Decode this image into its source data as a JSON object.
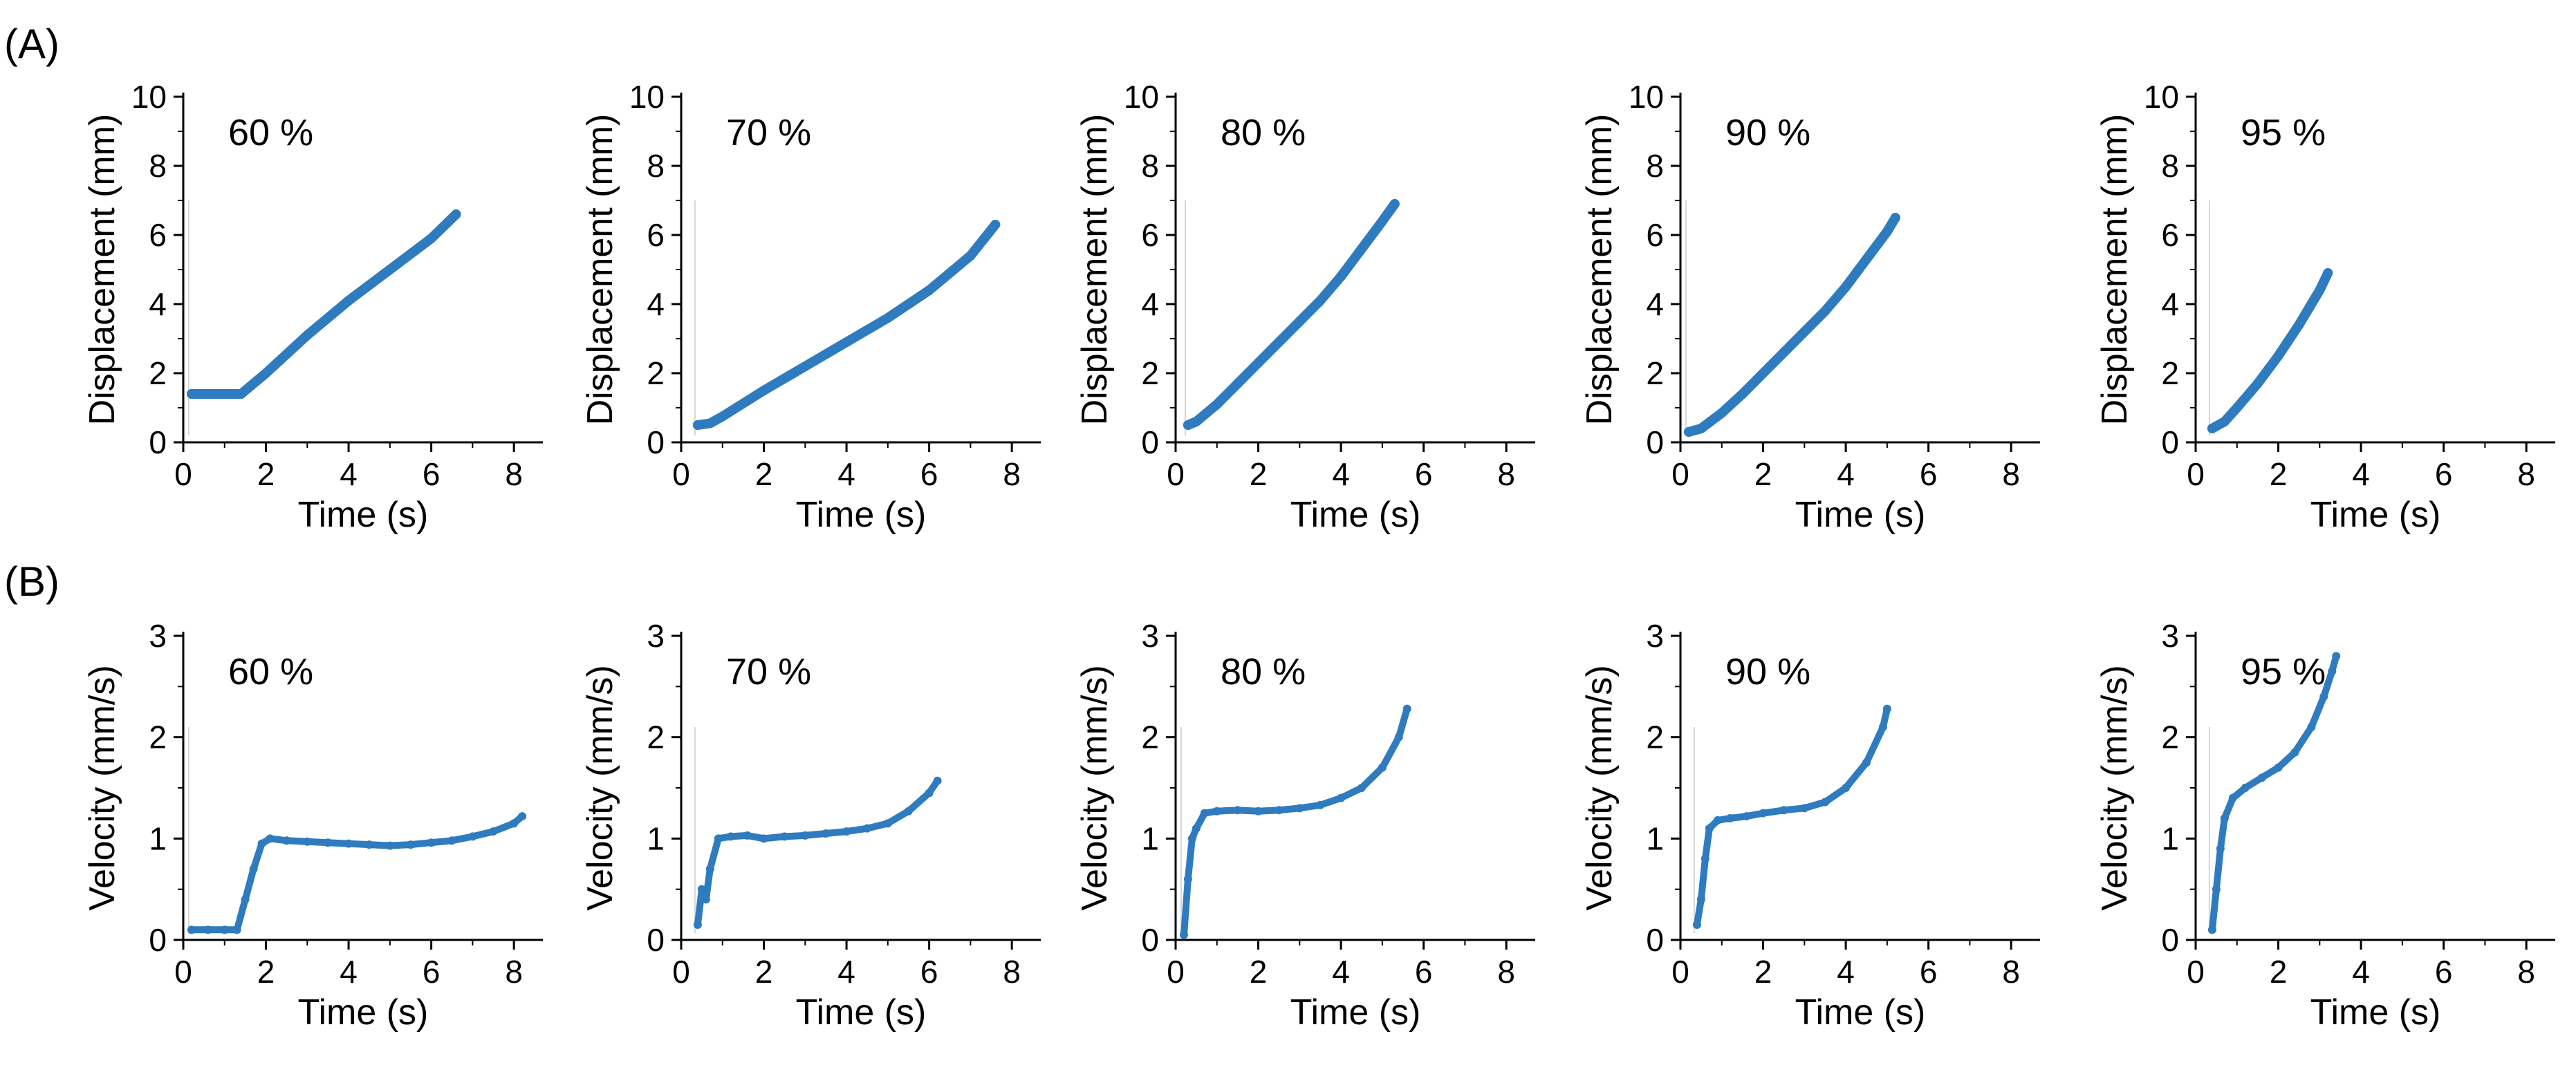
{
  "figure": {
    "panel_labels": [
      "(A)",
      "(B)"
    ]
  },
  "colors": {
    "series": "#2f7bbf",
    "axis": "#000000"
  },
  "chart_data": [
    {
      "type": "scatter",
      "panel": "A",
      "title": "60 %",
      "xlabel": "Time (s)",
      "ylabel": "Displacement (mm)",
      "xlim": [
        0,
        8.7
      ],
      "ylim": [
        0,
        10
      ],
      "xticks": [
        0,
        2,
        4,
        6,
        8
      ],
      "yticks": [
        0,
        2,
        4,
        6,
        8,
        10
      ],
      "x": [
        0.2,
        0.5,
        1.0,
        1.4,
        2.0,
        3.0,
        4.0,
        5.0,
        6.0,
        6.6
      ],
      "y": [
        1.4,
        1.4,
        1.4,
        1.4,
        2.0,
        3.1,
        4.1,
        5.0,
        5.9,
        6.6
      ]
    },
    {
      "type": "scatter",
      "panel": "A",
      "title": "70 %",
      "xlabel": "Time (s)",
      "ylabel": "Displacement (mm)",
      "xlim": [
        0,
        8.7
      ],
      "ylim": [
        0,
        10
      ],
      "xticks": [
        0,
        2,
        4,
        6,
        8
      ],
      "yticks": [
        0,
        2,
        4,
        6,
        8,
        10
      ],
      "x": [
        0.4,
        0.7,
        1.0,
        2.0,
        3.0,
        4.0,
        5.0,
        6.0,
        7.0,
        7.6
      ],
      "y": [
        0.5,
        0.55,
        0.75,
        1.5,
        2.2,
        2.9,
        3.6,
        4.4,
        5.4,
        6.3
      ]
    },
    {
      "type": "scatter",
      "panel": "A",
      "title": "80 %",
      "xlabel": "Time (s)",
      "ylabel": "Displacement (mm)",
      "xlim": [
        0,
        8.7
      ],
      "ylim": [
        0,
        10
      ],
      "xticks": [
        0,
        2,
        4,
        6,
        8
      ],
      "yticks": [
        0,
        2,
        4,
        6,
        8,
        10
      ],
      "x": [
        0.3,
        0.5,
        1.0,
        1.5,
        2.0,
        2.5,
        3.0,
        3.5,
        4.0,
        4.5,
        5.0,
        5.3
      ],
      "y": [
        0.5,
        0.6,
        1.1,
        1.7,
        2.3,
        2.9,
        3.5,
        4.1,
        4.8,
        5.6,
        6.4,
        6.9
      ]
    },
    {
      "type": "scatter",
      "panel": "A",
      "title": "90 %",
      "xlabel": "Time (s)",
      "ylabel": "Displacement (mm)",
      "xlim": [
        0,
        8.7
      ],
      "ylim": [
        0,
        10
      ],
      "xticks": [
        0,
        2,
        4,
        6,
        8
      ],
      "yticks": [
        0,
        2,
        4,
        6,
        8,
        10
      ],
      "x": [
        0.2,
        0.5,
        1.0,
        1.5,
        2.0,
        2.5,
        3.0,
        3.5,
        4.0,
        4.5,
        5.0,
        5.2
      ],
      "y": [
        0.3,
        0.4,
        0.85,
        1.4,
        2.0,
        2.6,
        3.2,
        3.8,
        4.5,
        5.3,
        6.1,
        6.5
      ]
    },
    {
      "type": "scatter",
      "panel": "A",
      "title": "95 %",
      "xlabel": "Time (s)",
      "ylabel": "Displacement (mm)",
      "xlim": [
        0,
        8.7
      ],
      "ylim": [
        0,
        10
      ],
      "xticks": [
        0,
        2,
        4,
        6,
        8
      ],
      "yticks": [
        0,
        2,
        4,
        6,
        8,
        10
      ],
      "x": [
        0.4,
        0.7,
        1.0,
        1.5,
        2.0,
        2.5,
        3.0,
        3.2
      ],
      "y": [
        0.4,
        0.6,
        1.0,
        1.7,
        2.5,
        3.4,
        4.4,
        4.9
      ]
    },
    {
      "type": "scatter",
      "panel": "B",
      "title": "60 %",
      "xlabel": "Time (s)",
      "ylabel": "Velocity (mm/s)",
      "xlim": [
        0,
        8.7
      ],
      "ylim": [
        0,
        3
      ],
      "xticks": [
        0,
        2,
        4,
        6,
        8
      ],
      "yticks": [
        0,
        1,
        2,
        3
      ],
      "x": [
        0.2,
        0.6,
        1.0,
        1.3,
        1.5,
        1.7,
        1.9,
        2.1,
        2.5,
        3.0,
        3.5,
        4.0,
        4.5,
        5.0,
        5.5,
        6.0,
        6.5,
        7.0,
        7.5,
        8.0,
        8.2
      ],
      "y": [
        0.1,
        0.1,
        0.1,
        0.1,
        0.4,
        0.7,
        0.95,
        1.0,
        0.98,
        0.97,
        0.96,
        0.95,
        0.94,
        0.93,
        0.94,
        0.96,
        0.98,
        1.02,
        1.07,
        1.15,
        1.22
      ]
    },
    {
      "type": "scatter",
      "panel": "B",
      "title": "70 %",
      "xlabel": "Time (s)",
      "ylabel": "Velocity (mm/s)",
      "xlim": [
        0,
        8.7
      ],
      "ylim": [
        0,
        3
      ],
      "xticks": [
        0,
        2,
        4,
        6,
        8
      ],
      "yticks": [
        0,
        1,
        2,
        3
      ],
      "x": [
        0.4,
        0.5,
        0.6,
        0.7,
        0.9,
        1.2,
        1.6,
        2.0,
        2.5,
        3.0,
        3.5,
        4.0,
        4.5,
        5.0,
        5.5,
        6.0,
        6.2
      ],
      "y": [
        0.15,
        0.5,
        0.4,
        0.7,
        1.0,
        1.02,
        1.03,
        1.0,
        1.02,
        1.03,
        1.05,
        1.07,
        1.1,
        1.15,
        1.27,
        1.45,
        1.57
      ]
    },
    {
      "type": "scatter",
      "panel": "B",
      "title": "80 %",
      "xlabel": "Time (s)",
      "ylabel": "Velocity (mm/s)",
      "xlim": [
        0,
        8.7
      ],
      "ylim": [
        0,
        3
      ],
      "xticks": [
        0,
        2,
        4,
        6,
        8
      ],
      "yticks": [
        0,
        1,
        2,
        3
      ],
      "x": [
        0.2,
        0.3,
        0.4,
        0.5,
        0.7,
        1.0,
        1.5,
        2.0,
        2.5,
        3.0,
        3.5,
        4.0,
        4.5,
        5.0,
        5.4,
        5.6
      ],
      "y": [
        0.05,
        0.6,
        1.0,
        1.1,
        1.25,
        1.27,
        1.28,
        1.27,
        1.28,
        1.3,
        1.33,
        1.4,
        1.5,
        1.7,
        2.0,
        2.28
      ]
    },
    {
      "type": "scatter",
      "panel": "B",
      "title": "90 %",
      "xlabel": "Time (s)",
      "ylabel": "Velocity (mm/s)",
      "xlim": [
        0,
        8.7
      ],
      "ylim": [
        0,
        3
      ],
      "xticks": [
        0,
        2,
        4,
        6,
        8
      ],
      "yticks": [
        0,
        1,
        2,
        3
      ],
      "x": [
        0.4,
        0.5,
        0.6,
        0.7,
        0.9,
        1.2,
        1.6,
        2.0,
        2.5,
        3.0,
        3.5,
        4.0,
        4.5,
        4.9,
        5.0
      ],
      "y": [
        0.15,
        0.4,
        0.8,
        1.1,
        1.18,
        1.2,
        1.22,
        1.25,
        1.28,
        1.3,
        1.36,
        1.5,
        1.75,
        2.1,
        2.28
      ]
    },
    {
      "type": "scatter",
      "panel": "B",
      "title": "95 %",
      "xlabel": "Time (s)",
      "ylabel": "Velocity (mm/s)",
      "xlim": [
        0,
        8.7
      ],
      "ylim": [
        0,
        3
      ],
      "xticks": [
        0,
        2,
        4,
        6,
        8
      ],
      "yticks": [
        0,
        1,
        2,
        3
      ],
      "x": [
        0.4,
        0.5,
        0.6,
        0.7,
        0.9,
        1.2,
        1.6,
        2.0,
        2.4,
        2.8,
        3.1,
        3.3,
        3.4
      ],
      "y": [
        0.1,
        0.5,
        0.9,
        1.2,
        1.4,
        1.5,
        1.6,
        1.7,
        1.85,
        2.1,
        2.4,
        2.65,
        2.8
      ]
    }
  ]
}
